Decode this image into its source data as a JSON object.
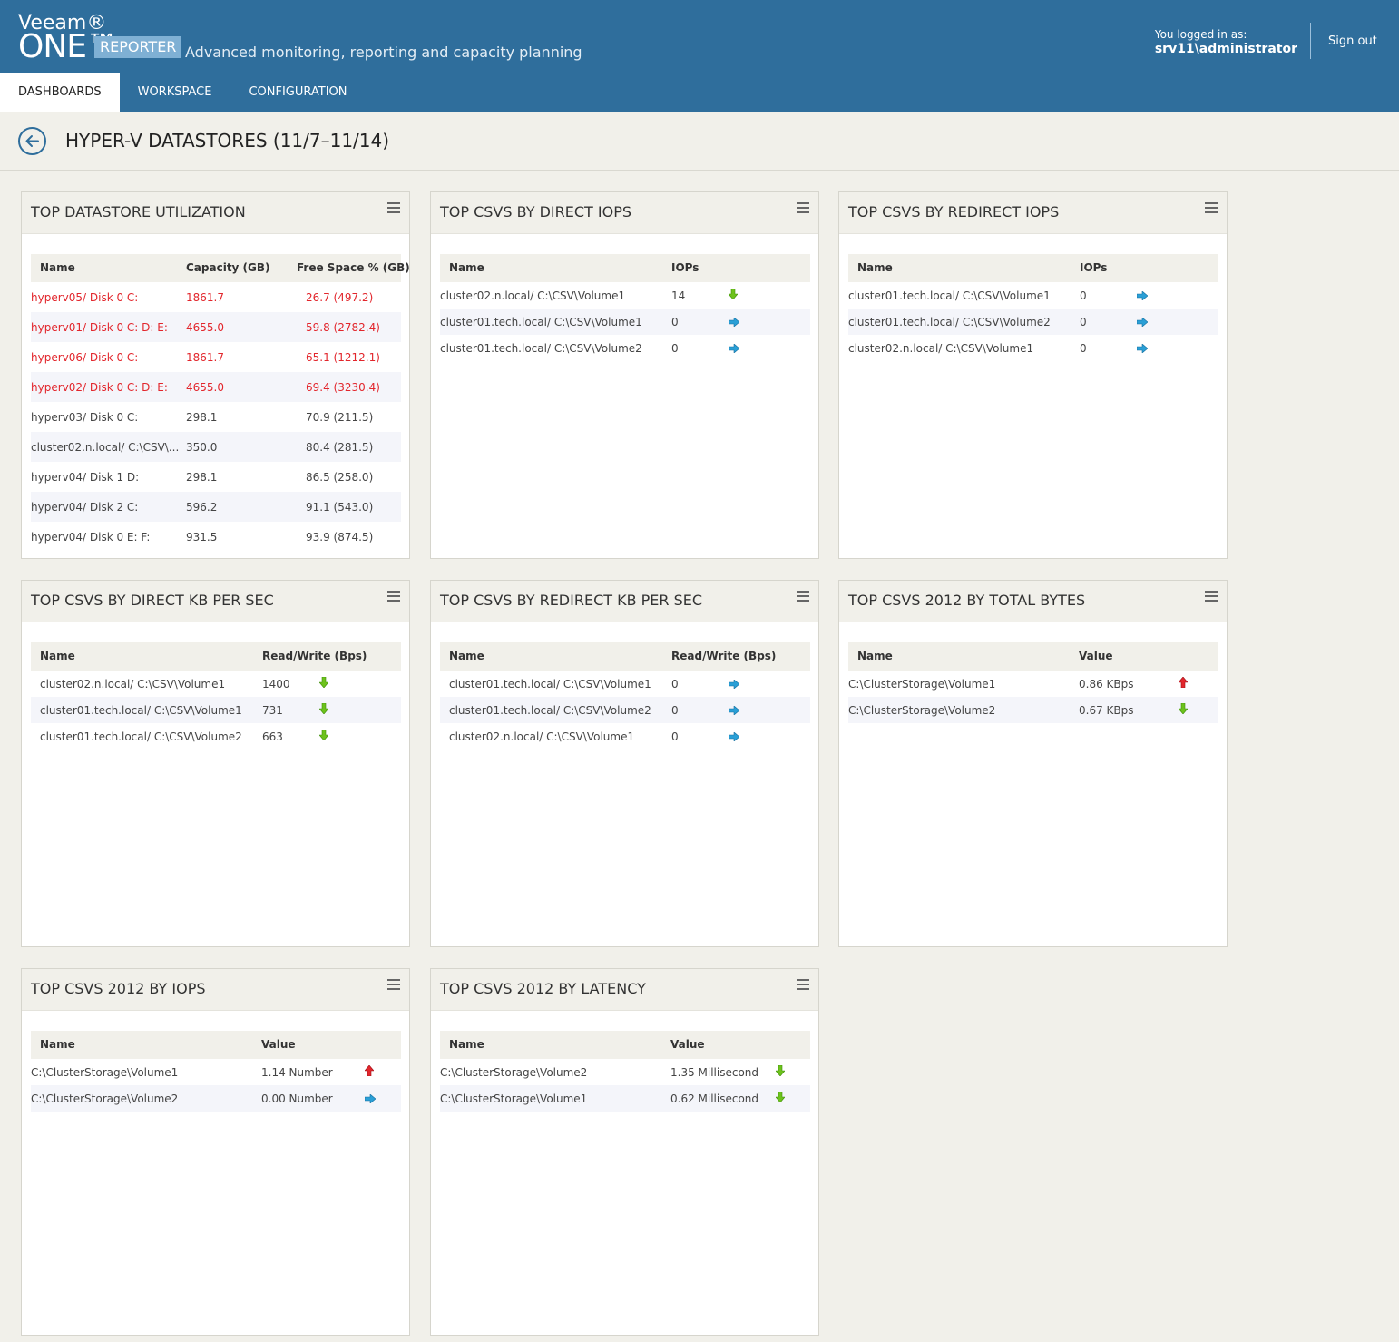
{
  "brand": {
    "veeam": "Veeam®",
    "one": "ONE™",
    "badge": "REPORTER",
    "tagline": "Advanced monitoring, reporting and capacity planning"
  },
  "user": {
    "label": "You logged in as:",
    "name": "srv11\\administrator",
    "signout": "Sign out"
  },
  "nav": {
    "items": [
      "DASHBOARDS",
      "WORKSPACE",
      "CONFIGURATION"
    ],
    "active": "DASHBOARDS"
  },
  "page": {
    "title": "HYPER-V DATASTORES (11/7–11/14)"
  },
  "colors": {
    "header": "#2f6e9c",
    "alert": "#e2262c",
    "trend_down": "#6dc21c",
    "trend_flat": "#2a9fd6",
    "trend_up": "#e2262c"
  },
  "widgets": [
    {
      "title": "TOP DATASTORE UTILIZATION",
      "columns": [
        "Name",
        "Capacity (GB)",
        "Free Space % (GB)"
      ],
      "rows": [
        [
          "hyperv05/ Disk 0 C:",
          "1861.7",
          "26.7 (497.2)"
        ],
        [
          "hyperv01/ Disk 0 C: D: E:",
          "4655.0",
          "59.8 (2782.4)"
        ],
        [
          "hyperv06/ Disk 0 C:",
          "1861.7",
          "65.1 (1212.1)"
        ],
        [
          "hyperv02/ Disk 0 C: D: E:",
          "4655.0",
          "69.4 (3230.4)"
        ],
        [
          "hyperv03/ Disk 0 C:",
          "298.1",
          "70.9 (211.5)"
        ],
        [
          "cluster02.n.local/ C:\\CSV\\...",
          "350.0",
          "80.4 (281.5)"
        ],
        [
          "hyperv04/ Disk 1 D:",
          "298.1",
          "86.5 (258.0)"
        ],
        [
          "hyperv04/ Disk 2 C:",
          "596.2",
          "91.1 (543.0)"
        ],
        [
          "hyperv04/ Disk 0 E: F:",
          "931.5",
          "93.9 (874.5)"
        ]
      ],
      "alert_rows": 4
    },
    {
      "title": "TOP CSVS BY DIRECT IOPS",
      "columns": [
        "Name",
        "IOPs"
      ],
      "rows": [
        [
          "cluster02.n.local/ C:\\CSV\\Volume1",
          "14",
          "down"
        ],
        [
          "cluster01.tech.local/ C:\\CSV\\Volume1",
          "0",
          "flat"
        ],
        [
          "cluster01.tech.local/ C:\\CSV\\Volume2",
          "0",
          "flat"
        ]
      ]
    },
    {
      "title": "TOP CSVS BY REDIRECT IOPS",
      "columns": [
        "Name",
        "IOPs"
      ],
      "rows": [
        [
          "cluster01.tech.local/ C:\\CSV\\Volume1",
          "0",
          "flat"
        ],
        [
          "cluster01.tech.local/ C:\\CSV\\Volume2",
          "0",
          "flat"
        ],
        [
          "cluster02.n.local/ C:\\CSV\\Volume1",
          "0",
          "flat"
        ]
      ]
    },
    {
      "title": "TOP CSVS BY DIRECT KB PER SEC",
      "columns": [
        "Name",
        "Read/Write (Bps)"
      ],
      "rows": [
        [
          "cluster02.n.local/ C:\\CSV\\Volume1",
          "1400",
          "down"
        ],
        [
          "cluster01.tech.local/ C:\\CSV\\Volume1",
          "731",
          "down"
        ],
        [
          "cluster01.tech.local/ C:\\CSV\\Volume2",
          "663",
          "down"
        ]
      ]
    },
    {
      "title": "TOP CSVS BY REDIRECT KB PER SEC",
      "columns": [
        "Name",
        "Read/Write (Bps)"
      ],
      "rows": [
        [
          "cluster01.tech.local/ C:\\CSV\\Volume1",
          "0",
          "flat"
        ],
        [
          "cluster01.tech.local/ C:\\CSV\\Volume2",
          "0",
          "flat"
        ],
        [
          "cluster02.n.local/ C:\\CSV\\Volume1",
          "0",
          "flat"
        ]
      ]
    },
    {
      "title": "TOP CSVS 2012 BY TOTAL BYTES",
      "columns": [
        "Name",
        "Value"
      ],
      "rows": [
        [
          "C:\\ClusterStorage\\Volume1",
          "0.86 KBps",
          "up"
        ],
        [
          "C:\\ClusterStorage\\Volume2",
          "0.67 KBps",
          "down"
        ]
      ]
    },
    {
      "title": "TOP CSVS 2012 BY IOPS",
      "columns": [
        "Name",
        "Value"
      ],
      "rows": [
        [
          "C:\\ClusterStorage\\Volume1",
          "1.14 Number",
          "up"
        ],
        [
          "C:\\ClusterStorage\\Volume2",
          "0.00 Number",
          "flat"
        ]
      ]
    },
    {
      "title": "TOP CSVS 2012 BY LATENCY",
      "columns": [
        "Name",
        "Value"
      ],
      "rows": [
        [
          "C:\\ClusterStorage\\Volume2",
          "1.35 Millisecond",
          "down"
        ],
        [
          "C:\\ClusterStorage\\Volume1",
          "0.62 Millisecond",
          "down"
        ]
      ]
    }
  ]
}
